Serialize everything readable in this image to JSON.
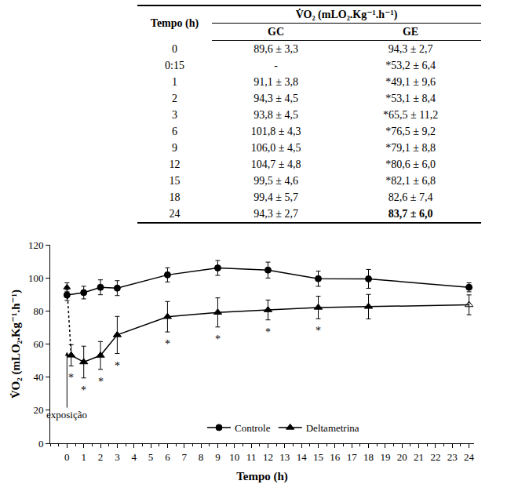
{
  "table": {
    "header": {
      "time": "Tempo (h)",
      "measure": "V̇O₂ (mLO₂.Kg⁻¹.h⁻¹)",
      "groups": [
        "GC",
        "GE"
      ]
    },
    "rows": [
      [
        "0",
        "89,6 ± 3,3",
        "94,3 ± 2,7"
      ],
      [
        "0:15",
        "-",
        "*53,2 ± 6,4"
      ],
      [
        "1",
        "91,1 ± 3,8",
        "*49,1 ± 9,6"
      ],
      [
        "2",
        "94,3 ± 4,5",
        "*53,1 ± 8,4"
      ],
      [
        "3",
        "93,8 ± 4,5",
        "*65,5 ± 11,2"
      ],
      [
        "6",
        "101,8 ± 4,3",
        "*76,5 ± 9,2"
      ],
      [
        "9",
        "106,0 ± 4,5",
        "*79,1 ± 8,8"
      ],
      [
        "12",
        "104,7 ± 4,8",
        "*80,6 ± 6,0"
      ],
      [
        "15",
        "99,5 ± 4,6",
        "*82,1 ± 6,8"
      ],
      [
        "18",
        "99,4 ± 5,7",
        "82,6 ± 7,4"
      ],
      [
        "24",
        "94,3 ± 2,7",
        "83,7 ± 6,0"
      ]
    ],
    "bold_cell": [
      10,
      2
    ]
  },
  "chart_data": {
    "type": "line",
    "x_label": "Tempo (h)",
    "y_label": "V̇O₂ (mLO₂.Kg⁻¹.h⁻¹)",
    "xlim": [
      -1,
      24.3
    ],
    "xticks": [
      0,
      1,
      2,
      3,
      4,
      5,
      6,
      7,
      8,
      9,
      10,
      11,
      12,
      13,
      14,
      15,
      16,
      17,
      18,
      19,
      20,
      21,
      22,
      23,
      24
    ],
    "ylim": [
      0,
      120
    ],
    "yticks": [
      0,
      20,
      40,
      60,
      80,
      100,
      120
    ],
    "grid": false,
    "legend": "bottom",
    "series": [
      {
        "name": "Controle",
        "color": "#000000",
        "marker": "circle",
        "x": [
          0,
          1,
          2,
          3,
          6,
          9,
          12,
          15,
          18,
          24
        ],
        "values": [
          89.6,
          91.1,
          94.3,
          93.8,
          101.8,
          106.0,
          104.7,
          99.5,
          99.4,
          94.3
        ],
        "errors": [
          3.3,
          3.8,
          4.5,
          4.5,
          4.3,
          4.5,
          4.8,
          4.6,
          5.7,
          2.7
        ]
      },
      {
        "name": "Deltametrina",
        "color": "#000000",
        "marker": "triangle-up",
        "x": [
          0,
          0.25,
          1,
          2,
          3,
          6,
          9,
          12,
          15,
          18,
          24
        ],
        "values": [
          94.3,
          53.2,
          49.1,
          53.1,
          65.5,
          76.5,
          79.1,
          80.6,
          82.1,
          82.6,
          83.7
        ],
        "errors": [
          2.7,
          6.4,
          9.6,
          8.4,
          11.2,
          9.2,
          8.8,
          6.0,
          6.8,
          7.4,
          6.0
        ]
      }
    ],
    "annotations": [
      {
        "text": "*",
        "x": 0.25
      },
      {
        "text": "*",
        "x": 1
      },
      {
        "text": "*",
        "x": 2
      },
      {
        "text": "*",
        "x": 3
      },
      {
        "text": "*",
        "x": 6
      },
      {
        "text": "*",
        "x": 9
      },
      {
        "text": "*",
        "x": 12
      },
      {
        "text": "*",
        "x": 15
      }
    ],
    "arrow_label": {
      "text": "exposição",
      "x": 0
    }
  }
}
